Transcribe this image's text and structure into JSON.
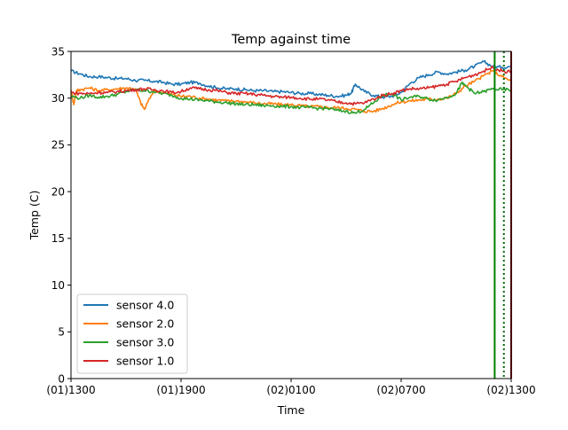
{
  "chart_data": {
    "type": "line",
    "title": "Temp against  time",
    "xlabel": "Time",
    "ylabel": "Temp (C)",
    "xlim_hours": [
      0,
      24
    ],
    "ylim": [
      0,
      35
    ],
    "x_ticks": [
      {
        "hours": 0,
        "label": "(01)1300"
      },
      {
        "hours": 6,
        "label": "(01)1900"
      },
      {
        "hours": 12,
        "label": "(02)0100"
      },
      {
        "hours": 18,
        "label": "(02)0700"
      },
      {
        "hours": 24,
        "label": "(02)1300"
      }
    ],
    "y_ticks": [
      0,
      5,
      10,
      15,
      20,
      25,
      30,
      35
    ],
    "grid": false,
    "legend_position": "lower-left",
    "series": [
      {
        "name": "sensor 4.0",
        "color": "#1f77b4",
        "x_hours": [
          0,
          0.5,
          1,
          1.5,
          2,
          2.5,
          3,
          3.5,
          4,
          4.5,
          5,
          5.5,
          6,
          6.5,
          7,
          7.5,
          8,
          8.5,
          9,
          9.5,
          10,
          10.5,
          11,
          11.5,
          12,
          12.5,
          13,
          13.5,
          14,
          14.5,
          15,
          15.3,
          15.5,
          16,
          16.5,
          17,
          17.5,
          18,
          18.5,
          19,
          19.5,
          20,
          20.5,
          21,
          21.5,
          22,
          22.5,
          23,
          23.5,
          24
        ],
        "y": [
          32.9,
          32.6,
          32.3,
          32.3,
          32.2,
          32.1,
          32.1,
          31.9,
          31.9,
          31.8,
          31.7,
          31.5,
          31.5,
          31.7,
          31.6,
          31.3,
          31.1,
          31,
          31,
          30.9,
          30.8,
          30.8,
          30.7,
          30.7,
          30.6,
          30.5,
          30.5,
          30.4,
          30.3,
          30.2,
          30.3,
          30.6,
          31.5,
          30.7,
          30.3,
          30.1,
          30.2,
          30.6,
          31.6,
          32.2,
          32.5,
          32.8,
          32.6,
          32.8,
          33,
          33.4,
          33.9,
          33.4,
          33.3,
          33.4
        ]
      },
      {
        "name": "sensor 2.0",
        "color": "#ff7f0e",
        "x_hours": [
          0,
          0.15,
          0.3,
          0.5,
          1,
          1.5,
          2,
          2.5,
          3,
          3.5,
          3.8,
          4,
          4.5,
          5,
          5.5,
          6,
          6.5,
          7,
          7.5,
          8,
          8.5,
          9,
          9.5,
          10,
          10.5,
          11,
          11.5,
          12,
          12.5,
          13,
          13.5,
          14,
          14.5,
          15,
          15.5,
          16,
          16.5,
          17,
          17.5,
          18,
          18.5,
          19,
          19.5,
          20,
          20.5,
          21,
          21.5,
          22,
          22.5,
          23,
          23.5,
          24
        ],
        "y": [
          30.9,
          29.3,
          30.8,
          30.9,
          31.1,
          30.8,
          30.9,
          31,
          31.1,
          31,
          29.5,
          28.8,
          30.8,
          30.6,
          30.4,
          30.2,
          30.2,
          30,
          29.9,
          29.8,
          29.7,
          29.7,
          29.6,
          29.5,
          29.4,
          29.4,
          29.3,
          29.3,
          29.2,
          29.1,
          29.1,
          29,
          29,
          28.9,
          28.8,
          28.6,
          28.6,
          28.9,
          29.3,
          29.6,
          29.7,
          29.8,
          29.9,
          29.9,
          30,
          30.5,
          31.3,
          31.8,
          32.4,
          32.9,
          32.3,
          31.8
        ]
      },
      {
        "name": "sensor 3.0",
        "color": "#2ca02c",
        "x_hours": [
          0,
          0.5,
          1,
          1.5,
          2,
          2.5,
          3,
          3.5,
          4,
          4.5,
          5,
          5.5,
          6,
          6.5,
          7,
          7.5,
          8,
          8.5,
          9,
          9.5,
          10,
          10.5,
          11,
          11.5,
          12,
          12.5,
          13,
          13.5,
          14,
          14.5,
          15,
          15.5,
          16,
          16.5,
          17,
          17.5,
          18,
          18.5,
          19,
          19.5,
          20,
          20.5,
          21,
          21.3,
          21.6,
          22,
          22.5,
          23,
          23.5,
          24
        ],
        "y": [
          30.2,
          30,
          30.3,
          30.1,
          30.2,
          30.4,
          30.7,
          30.9,
          30.8,
          30.7,
          30.5,
          30.3,
          30,
          29.9,
          29.8,
          29.7,
          29.6,
          29.5,
          29.4,
          29.3,
          29.3,
          29.2,
          29.2,
          29.1,
          29.1,
          29,
          29,
          28.9,
          28.9,
          28.7,
          28.6,
          28.4,
          28.8,
          29.5,
          30.3,
          30.5,
          29.8,
          30.1,
          30.2,
          29.9,
          29.8,
          30.1,
          30.5,
          31.6,
          31.2,
          30.5,
          30.7,
          31,
          30.9,
          30.9
        ]
      },
      {
        "name": "sensor 1.0",
        "color": "#d62728",
        "x_hours": [
          0,
          0.5,
          1,
          1.5,
          2,
          2.5,
          3,
          3.5,
          4,
          4.5,
          5,
          5.5,
          6,
          6.5,
          7,
          7.5,
          8,
          8.5,
          9,
          9.5,
          10,
          10.5,
          11,
          11.5,
          12,
          12.5,
          13,
          13.5,
          14,
          14.5,
          15,
          15.5,
          16,
          16.5,
          17,
          17.5,
          18,
          18.5,
          19,
          19.5,
          20,
          20.5,
          21,
          21.5,
          22,
          22.5,
          23,
          23.5,
          24
        ],
        "y": [
          30.6,
          30.5,
          30.5,
          30.6,
          30.6,
          30.7,
          30.8,
          30.9,
          31,
          30.9,
          30.8,
          30.6,
          30.7,
          31.1,
          31,
          30.9,
          30.8,
          30.6,
          30.5,
          30.5,
          30.4,
          30.3,
          30.2,
          30.1,
          30.1,
          30,
          29.9,
          29.9,
          29.8,
          29.6,
          29.5,
          29.4,
          29.5,
          29.9,
          30.3,
          30.5,
          30.8,
          31,
          31,
          31.1,
          31.3,
          31.5,
          31.8,
          32.2,
          32.5,
          32.9,
          33.3,
          32.9,
          32.8
        ]
      }
    ],
    "vertical_lines": [
      {
        "x_hours": 23.1,
        "color": "#008000",
        "style": "solid"
      },
      {
        "x_hours": 23.6,
        "color": "#006400",
        "style": "dotted"
      },
      {
        "x_hours": 24,
        "color": "#8b0000",
        "style": "solid"
      }
    ]
  }
}
